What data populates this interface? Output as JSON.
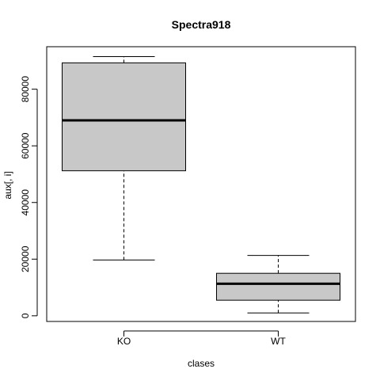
{
  "chart_data": {
    "type": "boxplot",
    "title": "Spectra918",
    "xlabel": "clases",
    "ylabel": "aux[, i]",
    "categories": [
      "KO",
      "WT"
    ],
    "boxes": [
      {
        "name": "KO",
        "whisker_low": 19700,
        "q1": 51200,
        "median": 69000,
        "q3": 89300,
        "whisker_high": 91500
      },
      {
        "name": "WT",
        "whisker_low": 1000,
        "q1": 5500,
        "median": 11300,
        "q3": 15000,
        "whisker_high": 21300
      }
    ],
    "yticks": [
      0,
      20000,
      40000,
      60000,
      80000
    ],
    "ylim": [
      -2000,
      95000
    ],
    "grid": false,
    "legend": "none",
    "colors": {
      "box_fill": "#c8c8c8",
      "stroke": "#000000"
    }
  }
}
